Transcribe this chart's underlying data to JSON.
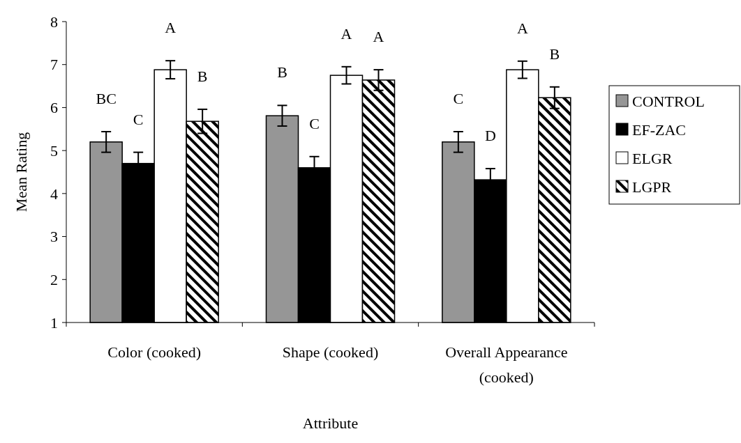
{
  "chart_data": {
    "type": "bar",
    "xlabel": "Attribute",
    "ylabel": "Mean Rating",
    "categories": [
      "Color (cooked)",
      "Shape (cooked)",
      "Overall Appearance (cooked)"
    ],
    "ylim": [
      1,
      8
    ],
    "yticks": [
      1,
      2,
      3,
      4,
      5,
      6,
      7,
      8
    ],
    "grid": false,
    "legend": "right",
    "series": [
      {
        "name": "CONTROL",
        "color": "#969696",
        "values": [
          5.2,
          5.81,
          5.2
        ],
        "errors": [
          0.24,
          0.24,
          0.24
        ],
        "value_labels": [
          "BC",
          "B",
          "C"
        ]
      },
      {
        "name": "EF-ZAC",
        "color": "#000000",
        "values": [
          4.7,
          4.6,
          4.32
        ],
        "errors": [
          0.26,
          0.26,
          0.26
        ],
        "value_labels": [
          "C",
          "C",
          "D"
        ]
      },
      {
        "name": "ELGR",
        "color": "#ffffff",
        "values": [
          6.88,
          6.75,
          6.88
        ],
        "errors": [
          0.21,
          0.2,
          0.2
        ],
        "value_labels": [
          "A",
          "A",
          "A"
        ]
      },
      {
        "name": "LGPR",
        "color": "#000000",
        "values": [
          5.68,
          6.64,
          6.23
        ],
        "errors": [
          0.28,
          0.24,
          0.25
        ],
        "value_labels": [
          "B",
          "A",
          "B"
        ]
      }
    ]
  }
}
